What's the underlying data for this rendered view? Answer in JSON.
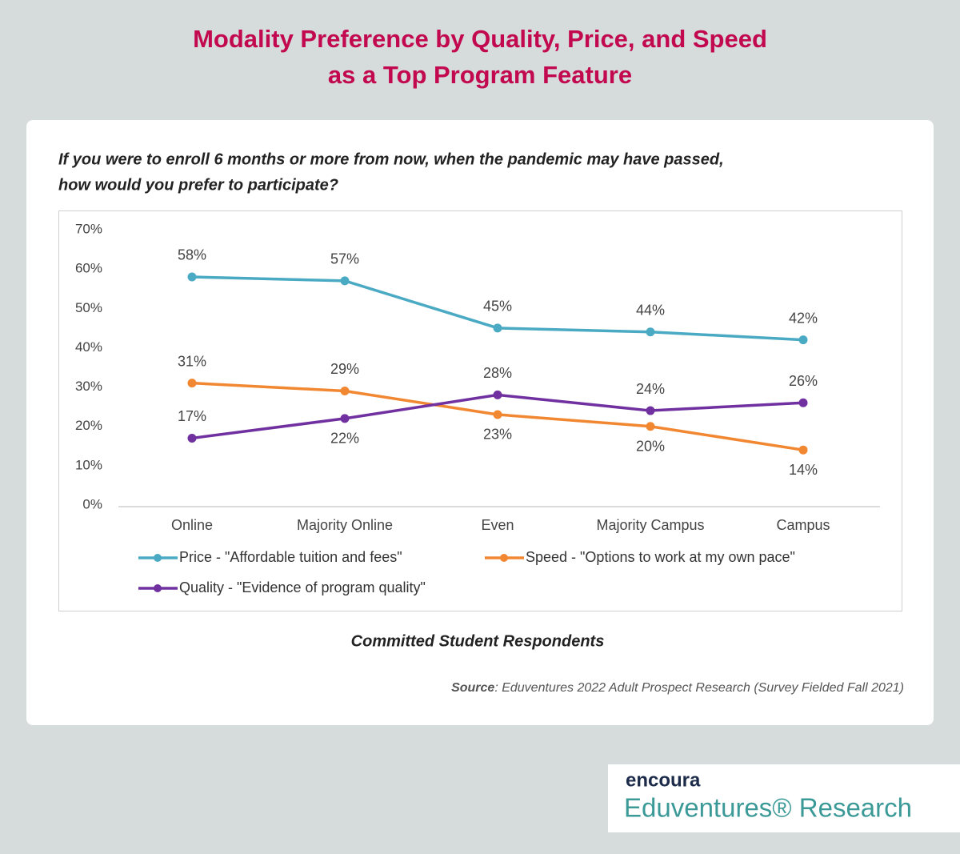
{
  "chart_data": {
    "type": "line",
    "title": [
      "Modality Preference by Quality, Price, and Speed",
      "as a Top Program Feature"
    ],
    "subtitle": [
      "If you were to enroll 6 months or more from now, when the pandemic may have passed,",
      "how would you prefer to participate?"
    ],
    "x_label": "Committed Student Respondents",
    "source_label": "Source",
    "source_text": ": Eduventures 2022 Adult Prospect Research (Survey Fielded Fall 2021)",
    "brand": "encoura",
    "brand_sub": "Eduventures® Research",
    "categories": [
      "Online",
      "Majority Online",
      "Even",
      "Majority Campus",
      "Campus"
    ],
    "series": [
      {
        "name": "Price - \"Affordable tuition and fees\"",
        "color": "#4aaac4",
        "values": [
          58,
          57,
          45,
          44,
          42
        ],
        "value_labels": [
          "58%",
          "57%",
          "45%",
          "44%",
          "42%"
        ]
      },
      {
        "name": "Speed - \"Options to work at my own pace\"",
        "color": "#f28732",
        "values": [
          31,
          29,
          23,
          20,
          14
        ],
        "value_labels": [
          "31%",
          "29%",
          "23%",
          "20%",
          "14%"
        ]
      },
      {
        "name": "Quality - \"Evidence of program quality\"",
        "color": "#7030a0",
        "values": [
          17,
          22,
          28,
          24,
          26
        ],
        "value_labels": [
          "17%",
          "22%",
          "28%",
          "24%",
          "26%"
        ]
      }
    ],
    "ylim": [
      0,
      70
    ],
    "yticks": [
      {
        "value": 0,
        "label": "0%"
      },
      {
        "value": 10,
        "label": "10%"
      },
      {
        "value": 20,
        "label": "20%"
      },
      {
        "value": 30,
        "label": "30%"
      },
      {
        "value": 40,
        "label": "40%"
      },
      {
        "value": 50,
        "label": "50%"
      },
      {
        "value": 60,
        "label": "60%"
      },
      {
        "value": 70,
        "label": "70%"
      }
    ],
    "grid": false
  }
}
